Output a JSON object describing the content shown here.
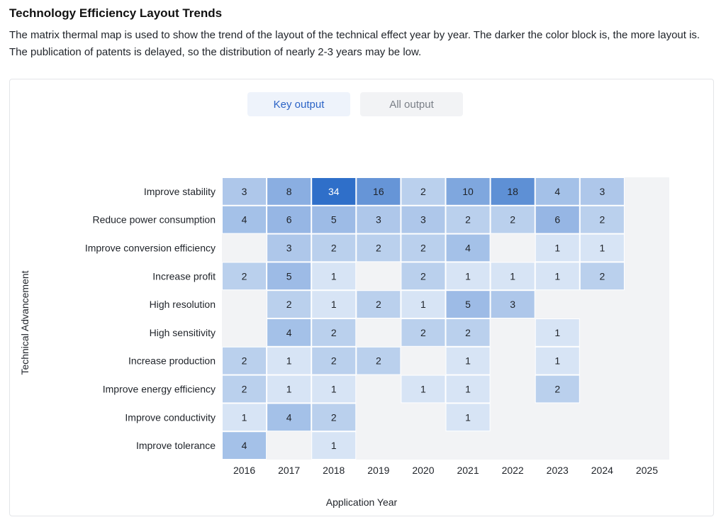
{
  "header": {
    "title": "Technology Efficiency Layout Trends",
    "description": "The matrix thermal map is used to show the trend of the layout of the technical effect year by year. The darker the color block is, the more layout is. The publication of patents is delayed, so the distribution of nearly 2-3 years may be low."
  },
  "toggle": {
    "key_output": "Key output",
    "all_output": "All output"
  },
  "colors": {
    "empty_cell": "#f2f3f5",
    "low": "#d7e4f5",
    "high": "#2f6fc9",
    "active_text": "#2b63c6"
  },
  "chart_data": {
    "type": "heatmap",
    "title": "",
    "xlabel": "Application Year",
    "ylabel": "Technical Advancement",
    "x": [
      "2016",
      "2017",
      "2018",
      "2019",
      "2020",
      "2021",
      "2022",
      "2023",
      "2024",
      "2025"
    ],
    "y": [
      "Improve stability",
      "Reduce power consumption",
      "Improve conversion efficiency",
      "Increase profit",
      "High resolution",
      "High sensitivity",
      "Increase production",
      "Improve energy efficiency",
      "Improve conductivity",
      "Improve tolerance"
    ],
    "values": [
      [
        3,
        8,
        34,
        16,
        2,
        10,
        18,
        4,
        3,
        null
      ],
      [
        4,
        6,
        5,
        3,
        3,
        2,
        2,
        6,
        2,
        null
      ],
      [
        null,
        3,
        2,
        2,
        2,
        4,
        null,
        1,
        1,
        null
      ],
      [
        2,
        5,
        1,
        null,
        2,
        1,
        1,
        1,
        2,
        null
      ],
      [
        null,
        2,
        1,
        2,
        1,
        5,
        3,
        null,
        null,
        null
      ],
      [
        null,
        4,
        2,
        null,
        2,
        2,
        null,
        1,
        null,
        null
      ],
      [
        2,
        1,
        2,
        2,
        null,
        1,
        null,
        1,
        null,
        null
      ],
      [
        2,
        1,
        1,
        null,
        1,
        1,
        null,
        2,
        null,
        null
      ],
      [
        1,
        4,
        2,
        null,
        null,
        1,
        null,
        null,
        null,
        null
      ],
      [
        4,
        null,
        1,
        null,
        null,
        null,
        null,
        null,
        null,
        null
      ]
    ],
    "value_max": 34,
    "grid": false,
    "legend": "none"
  }
}
